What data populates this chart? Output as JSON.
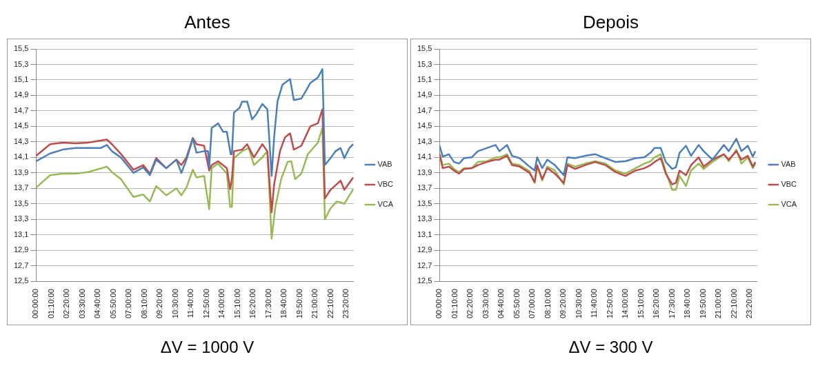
{
  "chart_data": [
    {
      "type": "line",
      "title": "Antes",
      "annotations": [
        "ΔV = 1000 V"
      ],
      "legend": "right",
      "grid": "y",
      "xlim": [
        0,
        23.9
      ],
      "xticks": [
        {
          "value": 0,
          "label": "00:00:00"
        },
        {
          "value": 1.16667,
          "label": "01:10:00"
        },
        {
          "value": 2.33333,
          "label": "02:20:00"
        },
        {
          "value": 3.5,
          "label": "03:30:00"
        },
        {
          "value": 4.66667,
          "label": "04:40:00"
        },
        {
          "value": 5.83333,
          "label": "05:50:00"
        },
        {
          "value": 7,
          "label": "07:00:00"
        },
        {
          "value": 8.16667,
          "label": "08:10:00"
        },
        {
          "value": 9.33333,
          "label": "09:20:00"
        },
        {
          "value": 10.5,
          "label": "10:30:00"
        },
        {
          "value": 11.66667,
          "label": "11:40:00"
        },
        {
          "value": 12.83333,
          "label": "12:50:00"
        },
        {
          "value": 14,
          "label": "14:00:00"
        },
        {
          "value": 15.16667,
          "label": "15:10:00"
        },
        {
          "value": 16.33333,
          "label": "16:20:00"
        },
        {
          "value": 17.5,
          "label": "17:30:00"
        },
        {
          "value": 18.66667,
          "label": "18:40:00"
        },
        {
          "value": 19.83333,
          "label": "19:50:00"
        },
        {
          "value": 21,
          "label": "21:00:00"
        },
        {
          "value": 22.16667,
          "label": "22:10:00"
        },
        {
          "value": 23.33333,
          "label": "23:20:00"
        }
      ],
      "ylim": [
        12.5,
        15.5
      ],
      "yticks": [
        {
          "value": 12.5,
          "label": "12,5"
        },
        {
          "value": 12.7,
          "label": "12,7"
        },
        {
          "value": 12.9,
          "label": "12,9"
        },
        {
          "value": 13.1,
          "label": "13,1"
        },
        {
          "value": 13.3,
          "label": "13,3"
        },
        {
          "value": 13.5,
          "label": "13,5"
        },
        {
          "value": 13.7,
          "label": "13,7"
        },
        {
          "value": 13.9,
          "label": "13,9"
        },
        {
          "value": 14.1,
          "label": "14,1"
        },
        {
          "value": 14.3,
          "label": "14,3"
        },
        {
          "value": 14.5,
          "label": "14,5"
        },
        {
          "value": 14.7,
          "label": "14,7"
        },
        {
          "value": 14.9,
          "label": "14,9"
        },
        {
          "value": 15.1,
          "label": "15,1"
        },
        {
          "value": 15.3,
          "label": "15,3"
        },
        {
          "value": 15.5,
          "label": "15,5"
        }
      ],
      "series": [
        {
          "name": "VAB",
          "color": "#4a7ebb",
          "x": [
            0,
            1.05,
            2.0,
            2.95,
            3.9,
            4.85,
            5.32,
            5.7,
            6.37,
            7.32,
            8.06,
            8.56,
            9.03,
            9.79,
            10.55,
            10.93,
            11.31,
            11.79,
            12.07,
            12.64,
            12.93,
            13.02,
            13.21,
            13.69,
            14.07,
            14.35,
            14.64,
            14.73,
            14.89,
            15.31,
            15.5,
            15.88,
            16.25,
            16.54,
            17.02,
            17.4,
            17.72,
            17.91,
            18.16,
            18.54,
            19.11,
            19.39,
            19.96,
            20.34,
            20.63,
            21.2,
            21.54,
            21.73,
            22.15,
            22.53,
            22.91,
            23.19,
            23.57,
            23.86
          ],
          "values": [
            14.05,
            14.15,
            14.2,
            14.22,
            14.22,
            14.22,
            14.26,
            14.18,
            14.1,
            13.9,
            13.97,
            13.87,
            14.07,
            13.96,
            14.07,
            13.9,
            14.07,
            14.34,
            14.16,
            14.18,
            14.18,
            13.96,
            14.48,
            14.54,
            14.43,
            14.43,
            14.14,
            14.14,
            14.68,
            14.74,
            14.82,
            14.82,
            14.59,
            14.65,
            14.79,
            14.72,
            13.86,
            14.36,
            14.82,
            15.04,
            15.11,
            14.84,
            14.86,
            14.97,
            15.06,
            15.13,
            15.24,
            14.0,
            14.09,
            14.18,
            14.22,
            14.09,
            14.22,
            14.27
          ]
        },
        {
          "name": "VBC",
          "color": "#be4b48",
          "x": [
            0,
            1.05,
            2.0,
            2.95,
            3.9,
            5.32,
            5.7,
            6.4,
            7.32,
            8.06,
            8.56,
            9.03,
            9.79,
            10.55,
            10.93,
            11.31,
            11.79,
            12.07,
            12.64,
            13.02,
            13.21,
            13.69,
            14.35,
            14.6,
            14.73,
            14.89,
            15.5,
            15.88,
            16.39,
            17.02,
            17.4,
            17.72,
            17.91,
            18.35,
            18.73,
            19.11,
            19.39,
            19.96,
            20.63,
            21.2,
            21.54,
            21.73,
            22.15,
            22.91,
            23.19,
            23.86
          ],
          "values": [
            14.12,
            14.27,
            14.29,
            14.28,
            14.29,
            14.33,
            14.27,
            14.14,
            13.94,
            14.0,
            13.89,
            14.09,
            13.96,
            14.07,
            14.0,
            14.1,
            14.35,
            14.27,
            14.25,
            13.93,
            14.0,
            14.05,
            13.96,
            13.69,
            13.82,
            14.18,
            14.2,
            14.27,
            14.1,
            14.27,
            14.18,
            13.39,
            13.75,
            14.18,
            14.36,
            14.41,
            14.2,
            14.25,
            14.5,
            14.54,
            14.72,
            13.57,
            13.68,
            13.8,
            13.68,
            13.84
          ]
        },
        {
          "name": "VCA",
          "color": "#98b954",
          "x": [
            0,
            1.05,
            2.0,
            2.95,
            3.9,
            5.32,
            5.7,
            6.37,
            7.32,
            8.06,
            8.56,
            9.03,
            9.79,
            10.55,
            10.93,
            11.31,
            11.79,
            12.07,
            12.64,
            13.02,
            13.21,
            13.69,
            14.35,
            14.6,
            14.73,
            14.89,
            15.5,
            16.0,
            16.39,
            17.02,
            17.4,
            17.72,
            18.0,
            18.44,
            18.92,
            19.2,
            19.49,
            19.96,
            20.44,
            21.2,
            21.54,
            21.73,
            22.15,
            22.62,
            22.91,
            23.19,
            23.86
          ],
          "values": [
            13.71,
            13.87,
            13.89,
            13.89,
            13.91,
            13.98,
            13.91,
            13.82,
            13.59,
            13.62,
            13.53,
            13.73,
            13.61,
            13.7,
            13.61,
            13.71,
            13.94,
            13.84,
            13.86,
            13.43,
            13.96,
            14.02,
            13.89,
            13.46,
            13.46,
            14.09,
            14.18,
            14.22,
            14.0,
            14.1,
            14.18,
            13.05,
            13.46,
            13.82,
            14.04,
            14.05,
            13.82,
            13.89,
            14.14,
            14.29,
            14.48,
            13.3,
            13.44,
            13.53,
            13.52,
            13.5,
            13.69
          ]
        }
      ]
    },
    {
      "type": "line",
      "title": "Depois",
      "annotations": [
        "ΔV = 300 V"
      ],
      "legend": "right",
      "grid": "y",
      "xlim": [
        0,
        23.9
      ],
      "xticks": [
        {
          "value": 0,
          "label": "00:00:00"
        },
        {
          "value": 1.16667,
          "label": "01:10:00"
        },
        {
          "value": 2.33333,
          "label": "02:20:00"
        },
        {
          "value": 3.5,
          "label": "03:30:00"
        },
        {
          "value": 4.66667,
          "label": "04:40:00"
        },
        {
          "value": 5.83333,
          "label": "05:50:00"
        },
        {
          "value": 7,
          "label": "07:00:00"
        },
        {
          "value": 8.16667,
          "label": "08:10:00"
        },
        {
          "value": 9.33333,
          "label": "09:20:00"
        },
        {
          "value": 10.5,
          "label": "10:30:00"
        },
        {
          "value": 11.66667,
          "label": "11:40:00"
        },
        {
          "value": 12.83333,
          "label": "12:50:00"
        },
        {
          "value": 14,
          "label": "14:00:00"
        },
        {
          "value": 15.16667,
          "label": "15:10:00"
        },
        {
          "value": 16.33333,
          "label": "16:20:00"
        },
        {
          "value": 17.5,
          "label": "17:30:00"
        },
        {
          "value": 18.66667,
          "label": "18:40:00"
        },
        {
          "value": 19.83333,
          "label": "19:50:00"
        },
        {
          "value": 21,
          "label": "21:00:00"
        },
        {
          "value": 22.16667,
          "label": "22:10:00"
        },
        {
          "value": 23.33333,
          "label": "23:20:00"
        }
      ],
      "ylim": [
        12.5,
        15.5
      ],
      "yticks": [
        {
          "value": 12.5,
          "label": "12,5"
        },
        {
          "value": 12.7,
          "label": "12,7"
        },
        {
          "value": 12.9,
          "label": "12,9"
        },
        {
          "value": 13.1,
          "label": "13,1"
        },
        {
          "value": 13.3,
          "label": "13,3"
        },
        {
          "value": 13.5,
          "label": "13,5"
        },
        {
          "value": 13.7,
          "label": "13,7"
        },
        {
          "value": 13.9,
          "label": "13,9"
        },
        {
          "value": 14.1,
          "label": "14,1"
        },
        {
          "value": 14.3,
          "label": "14,3"
        },
        {
          "value": 14.5,
          "label": "14,5"
        },
        {
          "value": 14.7,
          "label": "14,7"
        },
        {
          "value": 14.9,
          "label": "14,9"
        },
        {
          "value": 15.1,
          "label": "15,1"
        },
        {
          "value": 15.3,
          "label": "15,3"
        },
        {
          "value": 15.5,
          "label": "15,5"
        }
      ],
      "x": [
        0,
        0.23,
        0.7,
        1.08,
        1.46,
        1.84,
        2.41,
        2.88,
        3.55,
        4.21,
        4.5,
        5.07,
        5.45,
        6.02,
        6.77,
        7.15,
        7.34,
        7.72,
        8.1,
        8.67,
        9.34,
        9.62,
        10.19,
        10.95,
        11.71,
        12.47,
        13.23,
        13.98,
        14.74,
        15.41,
        15.88,
        16.17,
        16.64,
        17.02,
        17.5,
        17.78,
        18.06,
        18.54,
        18.92,
        19.49,
        19.87,
        20.53,
        21.39,
        21.76,
        22.33,
        22.71,
        23.19,
        23.57,
        23.76
      ],
      "series": [
        {
          "name": "VAB",
          "color": "#4a7ebb",
          "values": [
            14.25,
            14.11,
            14.14,
            14.04,
            14.02,
            14.09,
            14.1,
            14.18,
            14.22,
            14.26,
            14.18,
            14.26,
            14.12,
            14.09,
            13.98,
            13.93,
            14.1,
            13.96,
            14.07,
            14.0,
            13.87,
            14.1,
            14.09,
            14.12,
            14.14,
            14.09,
            14.04,
            14.05,
            14.09,
            14.1,
            14.16,
            14.22,
            14.22,
            14.04,
            13.95,
            13.97,
            14.16,
            14.25,
            14.12,
            14.26,
            14.18,
            14.07,
            14.26,
            14.18,
            14.34,
            14.18,
            14.25,
            14.11,
            14.18
          ]
        },
        {
          "name": "VBC",
          "color": "#be4b48",
          "values": [
            14.14,
            13.96,
            13.98,
            13.93,
            13.89,
            13.95,
            13.96,
            14.0,
            14.04,
            14.07,
            14.07,
            14.12,
            14.0,
            13.98,
            13.9,
            13.78,
            14.0,
            13.82,
            13.96,
            13.89,
            13.77,
            14.0,
            13.95,
            14.0,
            14.04,
            14.0,
            13.91,
            13.86,
            13.93,
            13.96,
            14.0,
            14.04,
            14.09,
            13.89,
            13.75,
            13.77,
            13.93,
            13.87,
            14.0,
            14.1,
            13.98,
            14.07,
            14.14,
            14.07,
            14.18,
            14.07,
            14.12,
            13.98,
            14.04
          ]
        },
        {
          "name": "VCA",
          "color": "#98b954",
          "values": [
            14.14,
            14.0,
            14.02,
            13.95,
            13.91,
            13.96,
            13.96,
            14.04,
            14.05,
            14.1,
            14.1,
            14.14,
            14.02,
            14.0,
            13.92,
            13.77,
            13.98,
            13.8,
            13.98,
            13.93,
            13.75,
            14.02,
            13.98,
            14.02,
            14.05,
            14.02,
            13.93,
            13.89,
            13.96,
            14.02,
            14.05,
            14.1,
            14.14,
            13.91,
            13.68,
            13.68,
            13.86,
            13.73,
            13.93,
            14.02,
            13.95,
            14.04,
            14.14,
            14.05,
            14.2,
            14.02,
            14.1,
            13.96,
            14.02
          ]
        }
      ]
    }
  ]
}
